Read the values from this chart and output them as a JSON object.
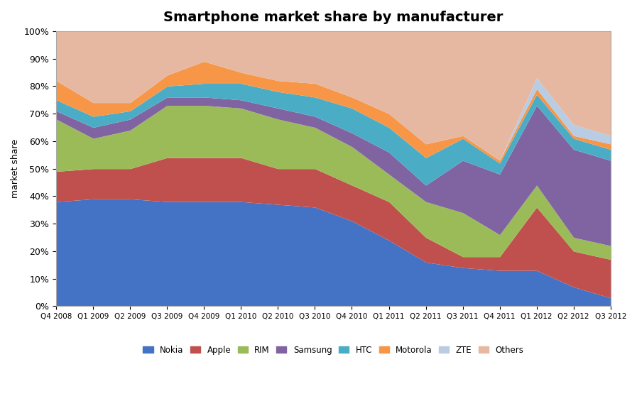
{
  "title": "Smartphone market share by manufacturer",
  "ylabel": "market share",
  "quarters": [
    "Q4 2008",
    "Q1 2009",
    "Q2 2009",
    "Q3 2009",
    "Q4 2009",
    "Q1 2010",
    "Q2 2010",
    "Q3 2010",
    "Q4 2010",
    "Q1 2011",
    "Q2 2011",
    "Q3 2011",
    "Q4 2011",
    "Q1 2012",
    "Q2 2012",
    "Q3 2012"
  ],
  "series": {
    "Nokia": [
      38,
      39,
      39,
      38,
      38,
      38,
      37,
      36,
      31,
      24,
      16,
      14,
      13,
      13,
      7,
      3
    ],
    "Apple": [
      11,
      11,
      11,
      16,
      16,
      16,
      13,
      14,
      13,
      14,
      9,
      4,
      5,
      23,
      13,
      14
    ],
    "RIM": [
      19,
      11,
      14,
      19,
      19,
      18,
      18,
      15,
      14,
      10,
      13,
      16,
      8,
      8,
      5,
      5
    ],
    "Samsung": [
      3,
      4,
      4,
      3,
      3,
      3,
      4,
      4,
      5,
      8,
      6,
      19,
      22,
      29,
      32,
      31
    ],
    "HTC": [
      4,
      4,
      3,
      4,
      5,
      6,
      6,
      7,
      9,
      9,
      10,
      8,
      4,
      4,
      4,
      4
    ],
    "Motorola": [
      7,
      5,
      3,
      4,
      8,
      4,
      4,
      5,
      4,
      5,
      5,
      1,
      1,
      2,
      1,
      2
    ],
    "ZTE": [
      0,
      0,
      0,
      0,
      0,
      0,
      0,
      0,
      0,
      0,
      0,
      0,
      0,
      4,
      4,
      3
    ],
    "Others": [
      18,
      26,
      26,
      16,
      11,
      15,
      18,
      19,
      24,
      30,
      41,
      38,
      47,
      17,
      34,
      38
    ]
  },
  "colors": {
    "Nokia": "#4472C4",
    "Apple": "#C0504D",
    "RIM": "#9BBB59",
    "Samsung": "#8064A2",
    "HTC": "#4BACC6",
    "Motorola": "#F79646",
    "ZTE": "#B8CCE4",
    "Others": "#E6B8A2"
  },
  "legend_order": [
    "Nokia",
    "Apple",
    "RIM",
    "Samsung",
    "HTC",
    "Motorola",
    "ZTE",
    "Others"
  ],
  "ylim": [
    0,
    100
  ],
  "yticks": [
    0,
    10,
    20,
    30,
    40,
    50,
    60,
    70,
    80,
    90,
    100
  ],
  "background_color": "#FFFFFF",
  "title_fontsize": 14
}
